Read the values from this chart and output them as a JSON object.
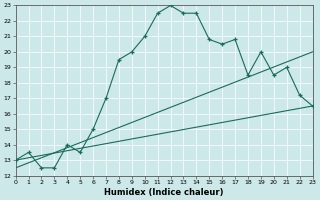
{
  "xlabel": "Humidex (Indice chaleur)",
  "bg_color": "#cce8e8",
  "line_color": "#1a6b5a",
  "xmin": 0,
  "xmax": 23,
  "ymin": 12,
  "ymax": 23,
  "curve_x": [
    0,
    1,
    2,
    3,
    4,
    5,
    6,
    7,
    8,
    9,
    10,
    11,
    12,
    13,
    14,
    15,
    16,
    17,
    18,
    19,
    20,
    21,
    22,
    23
  ],
  "curve_y": [
    13,
    13.5,
    12.5,
    12.5,
    14.0,
    13.5,
    15.0,
    17.0,
    19.5,
    20.0,
    21.0,
    22.5,
    23.0,
    22.5,
    22.5,
    20.8,
    20.5,
    20.8,
    18.5,
    20.0,
    18.5,
    19.0,
    17.2,
    16.5
  ],
  "line1_x": [
    0,
    23
  ],
  "line1_y": [
    13.0,
    16.5
  ],
  "line2_x": [
    0,
    23
  ],
  "line2_y": [
    12.5,
    20.0
  ],
  "grid_color": "#b8d8d8"
}
